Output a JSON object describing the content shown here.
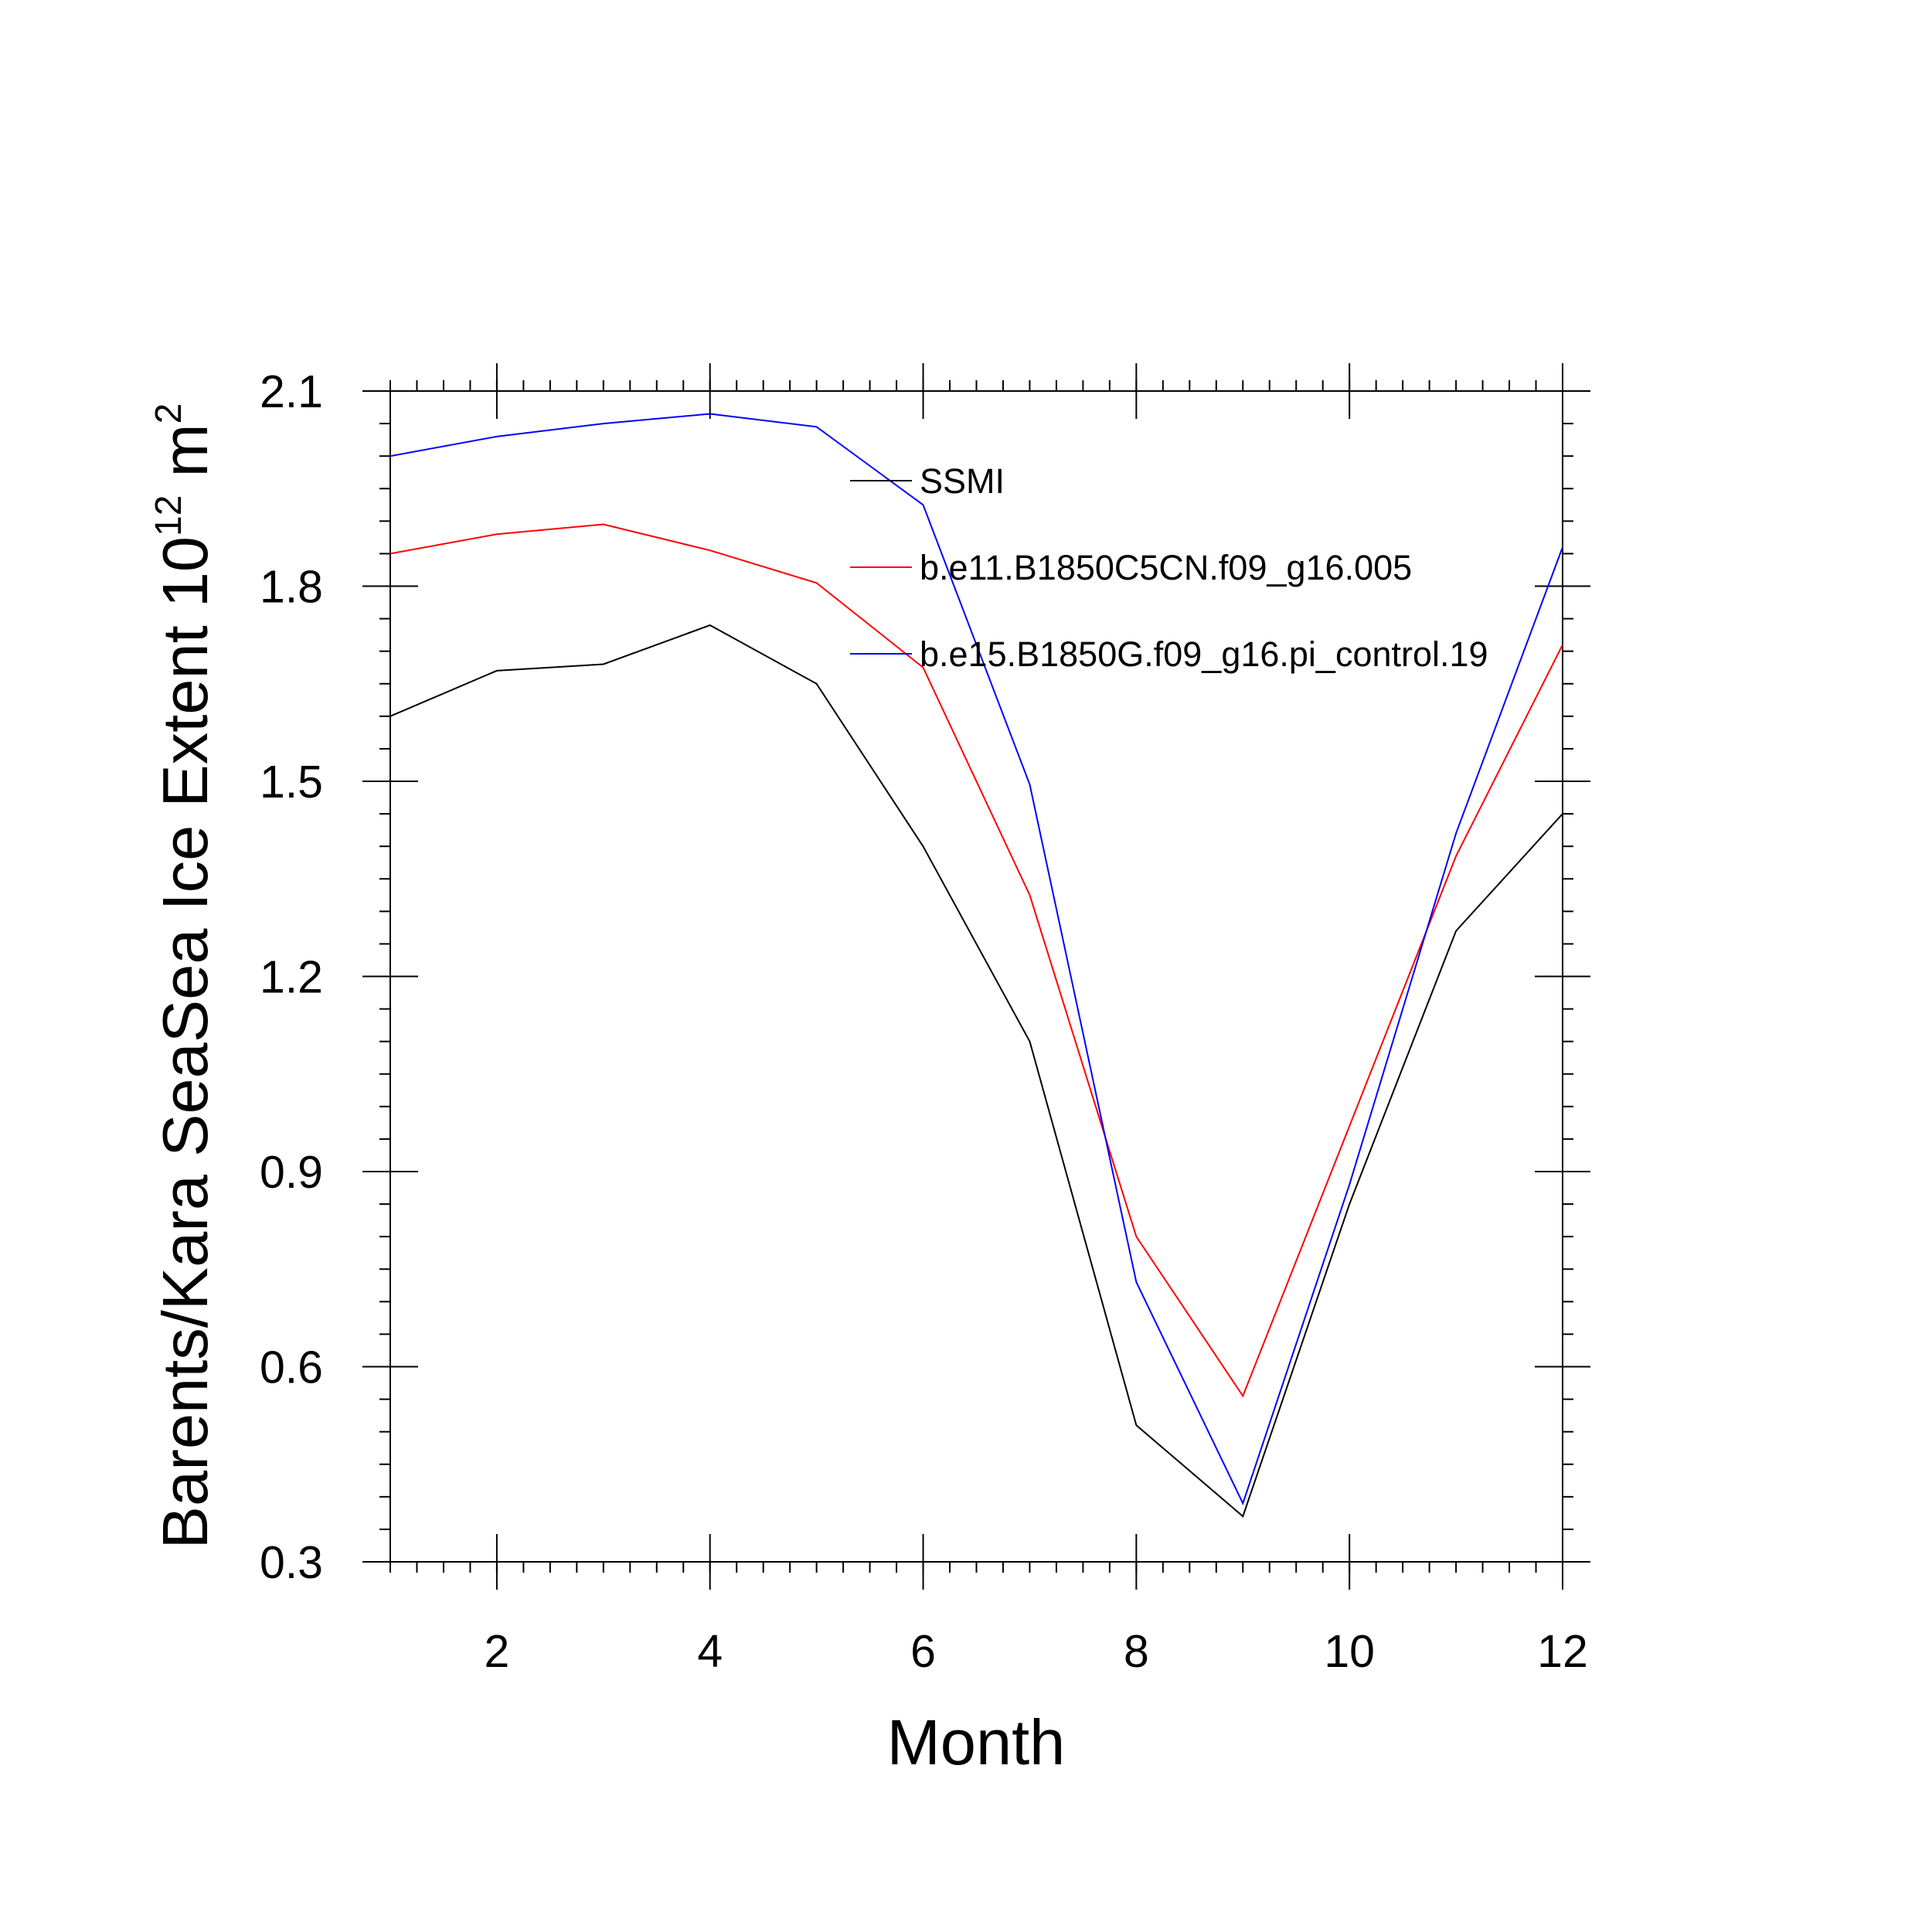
{
  "chart_data": {
    "type": "line",
    "xlabel": "Month",
    "ylabel": {
      "prefix": "Barents/Kara SeaSea Ice Extent 10",
      "exp1": "12",
      "middle": " m",
      "exp2": "2"
    },
    "xlim": [
      1,
      12
    ],
    "ylim": [
      0.3,
      2.1
    ],
    "xticks": [
      2,
      4,
      6,
      8,
      10,
      12
    ],
    "xtick_labels": [
      "2",
      "4",
      "6",
      "8",
      "10",
      "12"
    ],
    "yticks": [
      0.3,
      0.6,
      0.9,
      1.2,
      1.5,
      1.8,
      2.1
    ],
    "ytick_labels": [
      "0.3",
      "0.6",
      "0.9",
      "1.2",
      "1.5",
      "1.8",
      "2.1"
    ],
    "grid": false,
    "legend_position": "top-right inside",
    "x": [
      1,
      2,
      3,
      4,
      5,
      6,
      7,
      8,
      9,
      10,
      11,
      12
    ],
    "series": [
      {
        "name": "SSMI",
        "color": "#000000",
        "values": [
          1.6,
          1.67,
          1.68,
          1.74,
          1.65,
          1.4,
          1.1,
          0.51,
          0.37,
          0.85,
          1.27,
          1.45
        ]
      },
      {
        "name": "b.e11.B1850C5CN.f09_g16.005",
        "color": "#ff0000",
        "values": [
          1.85,
          1.88,
          1.895,
          1.855,
          1.805,
          1.675,
          1.325,
          0.8,
          0.555,
          0.97,
          1.385,
          1.71
        ]
      },
      {
        "name": "b.e15.B1850G.f09_g16.pi_control.19",
        "color": "#0000ff",
        "values": [
          2.0,
          2.03,
          2.05,
          2.065,
          2.045,
          1.925,
          1.495,
          0.73,
          0.39,
          0.88,
          1.42,
          1.86
        ]
      }
    ]
  }
}
